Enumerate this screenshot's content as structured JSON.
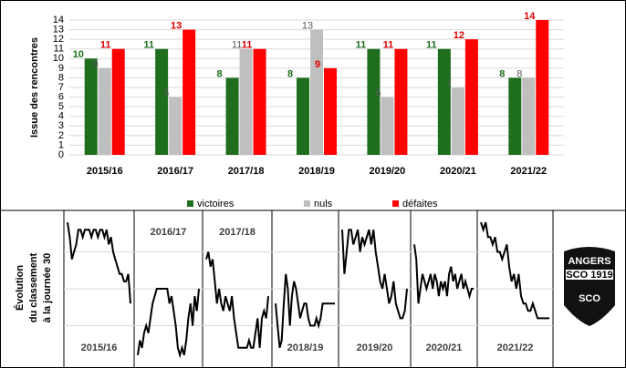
{
  "chart_data": [
    {
      "type": "bar",
      "ylabel": "Issue des rencontres",
      "categories": [
        "2015/16",
        "2016/17",
        "2017/18",
        "2018/19",
        "2019/20",
        "2020/21",
        "2021/22"
      ],
      "series": [
        {
          "name": "victoires",
          "color": "#1e6e1e",
          "values": [
            10,
            11,
            8,
            8,
            11,
            11,
            8
          ]
        },
        {
          "name": "nuls",
          "color": "#bfbfbf",
          "values": [
            9,
            6,
            11,
            13,
            6,
            7,
            8
          ]
        },
        {
          "name": "défaites",
          "color": "#ff0000",
          "values": [
            11,
            13,
            11,
            9,
            11,
            12,
            14
          ]
        }
      ],
      "ylim": [
        0,
        14
      ],
      "yticks": [
        0,
        1,
        2,
        3,
        4,
        5,
        6,
        7,
        8,
        9,
        10,
        11,
        12,
        13,
        14
      ],
      "grid": true,
      "legend": "bottom"
    },
    {
      "type": "line",
      "ylabel": [
        "Évolution",
        "du classement",
        "à la journée 30"
      ],
      "ylim": [
        20,
        0
      ],
      "yticks": [
        5,
        10,
        15
      ],
      "grid": true,
      "series": [
        {
          "name": "2015/16",
          "color": "#000000",
          "values": [
            1,
            3,
            6,
            5,
            4,
            2,
            2,
            3,
            2,
            2,
            2,
            3,
            2,
            2,
            3,
            2,
            2,
            3,
            2,
            4,
            3,
            5,
            6,
            7,
            8,
            8,
            9,
            9,
            8,
            12
          ]
        },
        {
          "name": "2016/17",
          "color": "#000000",
          "values": [
            19,
            17,
            18,
            16,
            15,
            16,
            14,
            12,
            11,
            10,
            10,
            10,
            10,
            10,
            10,
            12,
            11,
            13,
            15,
            18,
            19,
            18,
            19,
            17,
            14,
            12,
            15,
            11,
            13,
            10
          ]
        },
        {
          "name": "2017/18",
          "color": "#000000",
          "values": [
            6,
            5,
            7,
            6,
            9,
            12,
            10,
            12,
            13,
            11,
            12,
            13,
            11,
            14,
            16,
            18,
            18,
            18,
            18,
            18,
            17,
            18,
            18,
            16,
            14,
            18,
            14,
            13,
            14,
            11
          ]
        },
        {
          "name": "2018/19",
          "color": "#000000",
          "values": [
            12,
            15,
            18,
            17,
            12,
            8,
            10,
            15,
            11,
            9,
            10,
            12,
            14,
            13,
            12,
            12,
            14,
            15,
            15,
            15,
            14,
            15,
            14,
            12,
            12,
            12,
            12,
            12,
            12,
            12
          ]
        },
        {
          "name": "2019/20",
          "color": "#000000",
          "values": [
            2,
            8,
            5,
            2,
            2,
            4,
            3,
            2,
            5,
            3,
            4,
            3,
            2,
            4,
            2,
            5,
            7,
            9,
            10,
            8,
            10,
            12,
            11,
            9,
            12,
            13,
            14,
            14,
            13,
            10
          ]
        },
        {
          "name": "2020/21",
          "color": "#000000",
          "values": [
            4,
            6,
            12,
            10,
            8,
            9,
            10,
            9,
            8,
            10,
            8,
            9,
            11,
            9,
            10,
            9,
            11,
            8,
            7,
            9,
            8,
            10,
            9,
            8,
            10,
            9,
            10,
            11,
            10,
            10
          ]
        },
        {
          "name": "2021/22",
          "color": "#000000",
          "values": [
            1,
            2,
            1,
            3,
            3,
            4,
            3,
            5,
            5,
            6,
            5,
            4,
            7,
            9,
            8,
            10,
            8,
            11,
            12,
            12,
            13,
            13,
            12,
            13,
            14,
            14,
            14,
            14,
            14,
            14
          ]
        }
      ]
    }
  ],
  "logo": {
    "top": "ANGERS",
    "banner": "SCO 1919",
    "shield": "SCO"
  }
}
